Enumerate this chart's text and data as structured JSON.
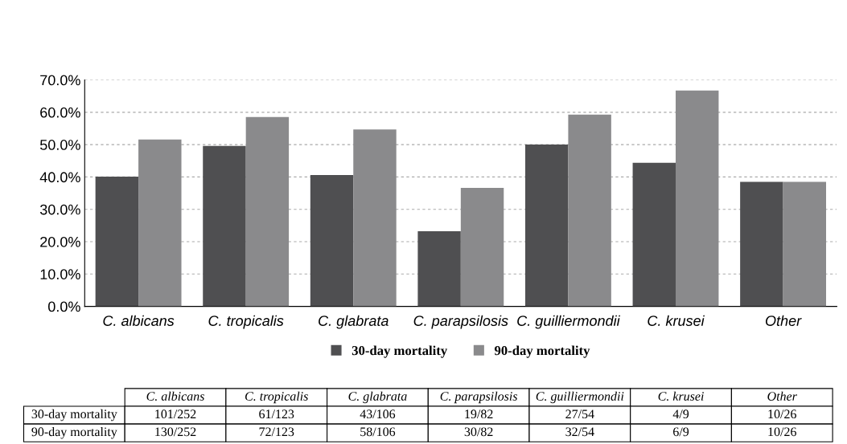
{
  "chart_data": {
    "type": "bar",
    "categories": [
      "C. albicans",
      "C. tropicalis",
      "C. glabrata",
      "C. parapsilosis",
      "C. guilliermondii",
      "C. krusei",
      "Other"
    ],
    "series": [
      {
        "name": "30-day mortality",
        "color": "#4f4f51",
        "values": [
          40.1,
          49.6,
          40.6,
          23.2,
          50.0,
          44.4,
          38.5
        ],
        "value_labels": [
          "101/252",
          "61/123",
          "43/106",
          "19/82",
          "27/54",
          "4/9",
          "10/26"
        ]
      },
      {
        "name": "90-day mortality",
        "color": "#8a8a8c",
        "values": [
          51.6,
          58.5,
          54.7,
          36.6,
          59.3,
          66.7,
          38.5
        ],
        "value_labels": [
          "130/252",
          "72/123",
          "58/106",
          "30/82",
          "32/54",
          "6/9",
          "10/26"
        ]
      }
    ],
    "ylim": [
      0,
      70
    ],
    "yticks": [
      {
        "value": 0,
        "label": "0.0%"
      },
      {
        "value": 10,
        "label": "10.0%"
      },
      {
        "value": 20,
        "label": "20.0%"
      },
      {
        "value": 30,
        "label": "30.0%"
      },
      {
        "value": 40,
        "label": "40.0%"
      },
      {
        "value": 50,
        "label": "50.0%"
      },
      {
        "value": 60,
        "label": "60.0%"
      },
      {
        "value": 70,
        "label": "70.0%"
      }
    ],
    "grid": "y",
    "legend": "bottom"
  }
}
